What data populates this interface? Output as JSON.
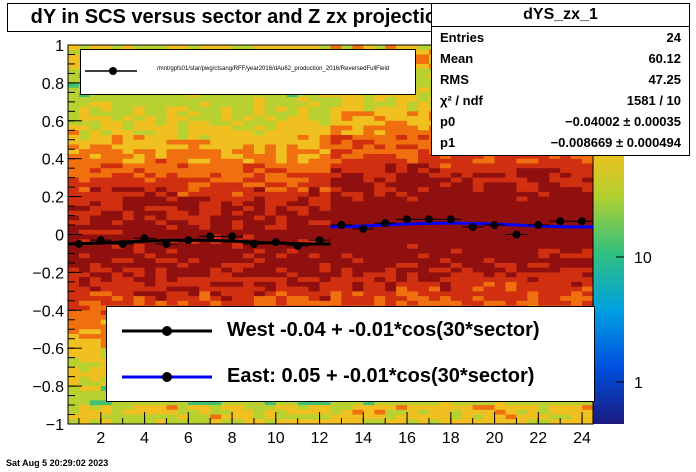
{
  "title": "dY in SCS versus sector and Z zx projection",
  "stats": {
    "name": "dYS_zx_1",
    "rows": [
      {
        "label": "Entries",
        "value": "24"
      },
      {
        "label": "Mean",
        "value": "60.12"
      },
      {
        "label": "RMS",
        "value": "47.25"
      },
      {
        "label": "χ² / ndf",
        "value": "1581 / 10"
      },
      {
        "label": "p0",
        "value": "−0.04002 ± 0.00035"
      },
      {
        "label": "p1",
        "value": "−0.008669 ± 0.000494"
      }
    ]
  },
  "legend_top": {
    "text": "/mnt/gpfs01/star/pwg/ctsang/RFF/year2016/dAu62_production_2016/ReversedFullField"
  },
  "legend_main": [
    {
      "label": "West -0.04 + -0.01*cos(30*sector)",
      "color": "#000000"
    },
    {
      "label": "East:  0.05 + -0.01*cos(30*sector)",
      "color": "#0000ff"
    }
  ],
  "footer": "Sat Aug  5 20:29:02 2023",
  "colors": {
    "west": "#000000",
    "east": "#0000ff"
  },
  "chart_data": {
    "type": "scatter",
    "xlim": [
      0.5,
      24.5
    ],
    "ylim": [
      -1,
      1
    ],
    "x_ticks": [
      2,
      4,
      6,
      8,
      10,
      12,
      14,
      16,
      18,
      20,
      22,
      24
    ],
    "y_ticks": [
      -1,
      -0.8,
      -0.6,
      -0.4,
      -0.2,
      0,
      0.2,
      0.4,
      0.6,
      0.8,
      1
    ],
    "z_scale": "log",
    "z_ticks": [
      "1",
      "10"
    ],
    "series": [
      {
        "x": [
          1,
          2,
          3,
          4,
          5,
          6,
          7,
          8,
          9,
          10,
          11,
          12,
          13,
          14,
          15,
          16,
          17,
          18,
          19,
          20,
          21,
          22,
          23,
          24
        ],
        "y": [
          -0.05,
          -0.03,
          -0.05,
          -0.02,
          -0.05,
          -0.03,
          -0.01,
          -0.01,
          -0.05,
          -0.04,
          -0.06,
          -0.03,
          0.05,
          0.03,
          0.06,
          0.08,
          0.08,
          0.08,
          0.04,
          0.05,
          0.0,
          0.05,
          0.07,
          0.07
        ]
      }
    ],
    "fits": [
      {
        "label": "West -0.04 + -0.01*cos(30*sector)",
        "x_range": [
          0.5,
          12.5
        ],
        "p0": -0.04,
        "p1": -0.01
      },
      {
        "label": "East:  0.05 + -0.01*cos(30*sector)",
        "x_range": [
          12.5,
          24.5
        ],
        "p0": 0.05,
        "p1": -0.01
      }
    ]
  }
}
